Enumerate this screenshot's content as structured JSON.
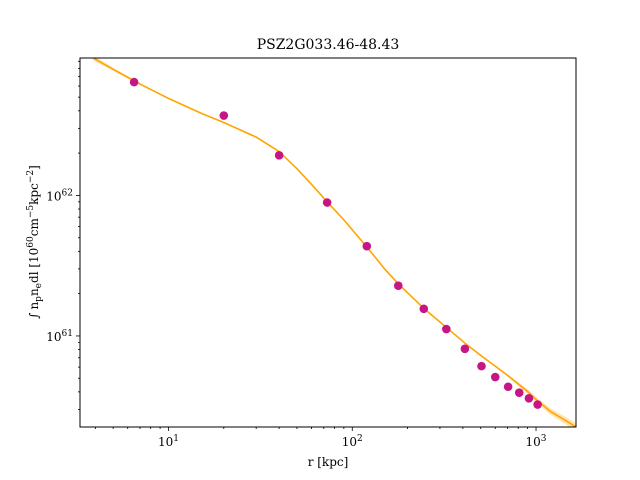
{
  "chart_data": {
    "type": "scatter",
    "title": "PSZ2G033.46-48.43",
    "xlabel": "r [kpc]",
    "ylabel": "∫ n_p n_e dl [10^60 cm^-5 kpc^-2]",
    "xscale": "log",
    "yscale": "log",
    "xlim": [
      3.3,
      1650
    ],
    "ylim": [
      2.25e+60,
      9.5e+62
    ],
    "x_ticks": [
      {
        "value": 10,
        "base": "10",
        "exp": "1"
      },
      {
        "value": 100,
        "base": "10",
        "exp": "2"
      },
      {
        "value": 1000,
        "base": "10",
        "exp": "3"
      }
    ],
    "y_ticks": [
      {
        "value": 1e+61,
        "base": "10",
        "exp": "61"
      },
      {
        "value": 1e+62,
        "base": "10",
        "exp": "62"
      }
    ],
    "ylabel_parts": {
      "integral": "∫",
      "n": "n",
      "p": "p",
      "n2": "n",
      "e": "e",
      "dl": "dl [10",
      "e60": "60",
      "cm": "cm",
      "em5": "−5",
      "kpc": "kpc",
      "em2": "−2",
      "close": "]"
    },
    "grid": false,
    "legend": "none",
    "series": [
      {
        "kind": "points",
        "color": "#c71585",
        "x": [
          6.5,
          20,
          40,
          73,
          120,
          178,
          245,
          325,
          410,
          505,
          600,
          705,
          810,
          915,
          1020
        ],
        "y": [
          6.4e+62,
          3.7e+62,
          1.93e+62,
          8.9e+61,
          4.35e+61,
          2.28e+61,
          1.56e+61,
          1.12e+61,
          8.1e+60,
          6.1e+60,
          5.1e+60,
          4.35e+60,
          3.95e+60,
          3.6e+60,
          3.25e+60
        ]
      },
      {
        "kind": "line",
        "color": "#ffa500",
        "band_color": "#ffd27f",
        "x": [
          3.9,
          5,
          7,
          10,
          15,
          20,
          30,
          40,
          50,
          60,
          73,
          90,
          120,
          150,
          178,
          220,
          245,
          325,
          410,
          505,
          600,
          705,
          810,
          915,
          1020,
          1200,
          1450,
          1650
        ],
        "y": [
          9.5e+62,
          7.9e+62,
          6.2e+62,
          4.9e+62,
          3.85e+62,
          3.3e+62,
          2.6e+62,
          2.05e+62,
          1.55e+62,
          1.2e+62,
          9e+61,
          6.7e+61,
          4.3e+61,
          3e+61,
          2.35e+61,
          1.8e+61,
          1.57e+61,
          1.15e+61,
          8.9e+60,
          7.2e+60,
          6.1e+60,
          5.2e+60,
          4.5e+60,
          3.95e+60,
          3.45e+60,
          2.9e+60,
          2.5e+60,
          2.25e+60
        ],
        "band_lower": [
          9.1e+62,
          7.7e+62,
          6.1e+62,
          4.85e+62,
          3.82e+62,
          3.28e+62,
          2.58e+62,
          2.03e+62,
          1.53e+62,
          1.19e+62,
          8.9e+61,
          6.65e+61,
          4.27e+61,
          2.98e+61,
          2.33e+61,
          1.79e+61,
          1.56e+61,
          1.14e+61,
          8.8e+60,
          7.1e+60,
          6e+60,
          5.1e+60,
          4.35e+60,
          3.8e+60,
          3.3e+60,
          2.75e+60,
          2.35e+60,
          2.1e+60
        ],
        "band_upper": [
          9.9e+62,
          8.1e+62,
          6.3e+62,
          4.95e+62,
          3.88e+62,
          3.32e+62,
          2.62e+62,
          2.07e+62,
          1.57e+62,
          1.21e+62,
          9.1e+61,
          6.75e+61,
          4.33e+61,
          3.02e+61,
          2.37e+61,
          1.81e+61,
          1.58e+61,
          1.16e+61,
          9e+60,
          7.3e+60,
          6.2e+60,
          5.3e+60,
          4.65e+60,
          4.1e+60,
          3.6e+60,
          3.05e+60,
          2.65e+60,
          2.4e+60
        ]
      }
    ]
  }
}
